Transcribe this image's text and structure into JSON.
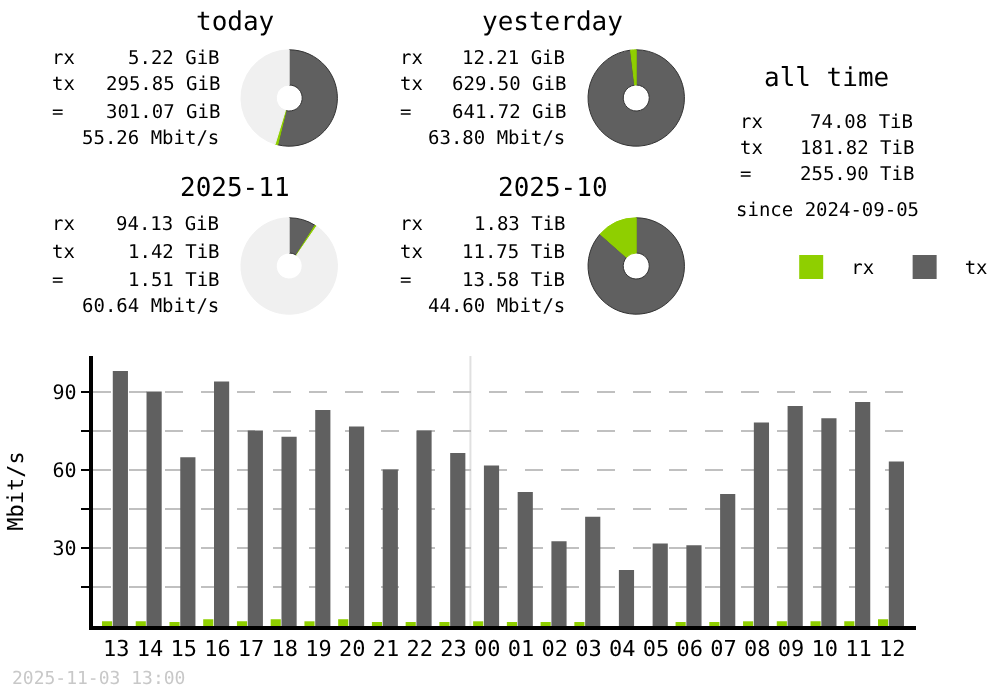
{
  "chart_data": [
    {
      "type": "donut",
      "title": "today",
      "categories": [
        null,
        null,
        null
      ],
      "values": [
        53.8,
        0.9,
        45.3
      ],
      "colors": [
        "#606060",
        "#8fcf00",
        "#f0f0f0"
      ],
      "annotations": [
        "rx 5.22 GiB",
        "tx 295.85 GiB",
        "= 301.07 GiB",
        "55.26 Mbit/s"
      ]
    },
    {
      "type": "donut",
      "title": "yesterday",
      "categories": [
        null,
        null
      ],
      "values": [
        98.1,
        1.9
      ],
      "colors": [
        "#606060",
        "#8fcf00"
      ],
      "annotations": [
        "rx 12.21 GiB",
        "tx 629.50 GiB",
        "= 641.72 GiB",
        "63.80 Mbit/s"
      ]
    },
    {
      "type": "donut",
      "title": "2025-11",
      "categories": [
        null,
        null,
        null
      ],
      "values": [
        9.0,
        0.6,
        90.4
      ],
      "colors": [
        "#606060",
        "#8fcf00",
        "#f0f0f0"
      ],
      "annotations": [
        "rx 94.13 GiB",
        "tx 1.42 TiB",
        "= 1.51 TiB",
        "60.64 Mbit/s"
      ]
    },
    {
      "type": "donut",
      "title": "2025-10",
      "categories": [
        null,
        null
      ],
      "values": [
        86.5,
        13.5
      ],
      "colors": [
        "#606060",
        "#8fcf00"
      ],
      "annotations": [
        "rx 1.83 TiB",
        "tx 11.75 TiB",
        "= 13.58 TiB",
        "44.60 Mbit/s"
      ]
    },
    {
      "type": "other",
      "title": "all time",
      "annotations": [
        "rx 74.08 TiB",
        "tx 181.82 TiB",
        "= 255.90 TiB",
        "since 2024-09-05"
      ]
    },
    {
      "type": "bar",
      "ylabel": "Mbit/s",
      "legend": "top right",
      "grid": "y",
      "categories": [
        "13",
        "14",
        "15",
        "16",
        "17",
        "18",
        "19",
        "20",
        "21",
        "22",
        "23",
        "00",
        "01",
        "02",
        "03",
        "04",
        "05",
        "06",
        "07",
        "08",
        "09",
        "10",
        "11",
        "12"
      ],
      "series": [
        {
          "name": "rx",
          "color": "#8fcf00",
          "values": [
            1.8,
            1.8,
            1,
            2.6,
            1.8,
            2.6,
            1.8,
            2.6,
            1,
            1,
            1,
            1.8,
            1,
            1,
            1,
            0,
            0,
            1,
            1,
            1.8,
            1.8,
            1.8,
            1.8,
            2.6
          ]
        },
        {
          "name": "tx",
          "color": "#606060",
          "values": [
            98.2,
            90.3,
            65.0,
            94.2,
            75.3,
            72.9,
            83.2,
            76.8,
            60.3,
            75.3,
            66.6,
            61.8,
            51.6,
            32.6,
            42.1,
            21.6,
            31.8,
            31.1,
            50.8,
            78.4,
            84.7,
            80.0,
            86.3,
            63.4
          ]
        }
      ],
      "ylim": [
        0,
        104
      ],
      "yticks": [
        {
          "value": 15,
          "label": null
        },
        30,
        {
          "value": 45,
          "label": null
        },
        60,
        {
          "value": 75,
          "label": null
        },
        90
      ],
      "ref_lines": [
        {
          "axis": "x",
          "value": "00",
          "color": "#e0e0e0"
        }
      ],
      "annotations": [
        "2025-11-03 13:00"
      ]
    }
  ]
}
